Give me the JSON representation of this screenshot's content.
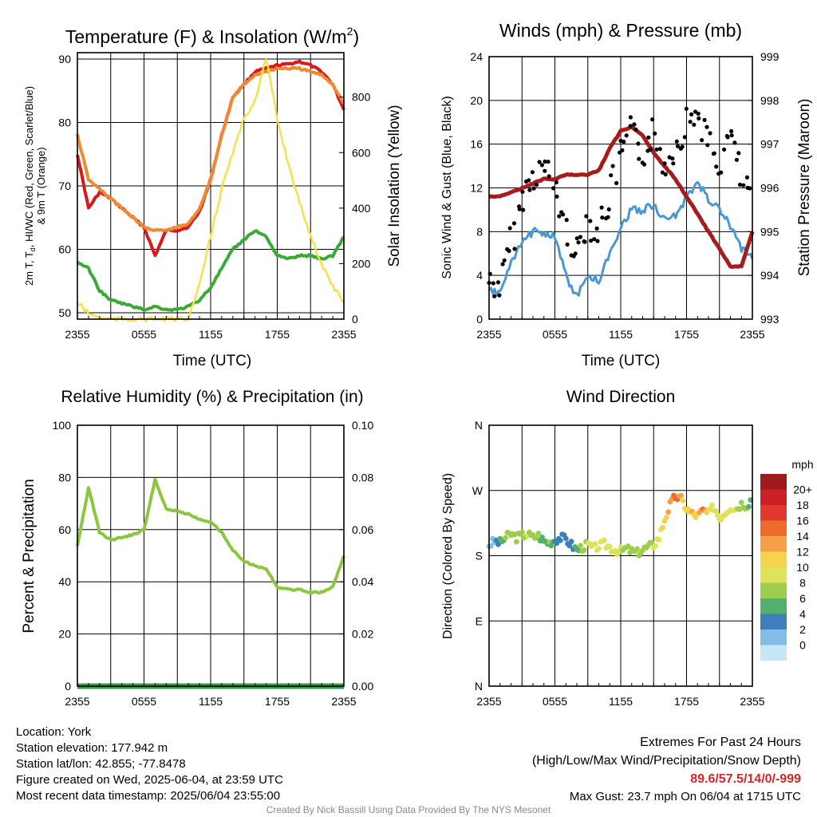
{
  "colors": {
    "red": "#d7191c",
    "orange": "#f08a32",
    "green": "#3aaa35",
    "yellow": "#f7e04a",
    "blue": "#4a98d3",
    "black": "#000000",
    "maroon": "#a51c1c",
    "rh": "#8cc63f",
    "precip": "#2f9e44",
    "highlight": "#d62728",
    "credit": "#888888"
  },
  "time_ticks": [
    "2355",
    "0555",
    "1155",
    "1755",
    "2355"
  ],
  "chart_data": [
    {
      "type": "line",
      "title": "Temperature (F) & Insolation (W/m",
      "title_sup": "2",
      "title_end": ")",
      "xlabel": "Time (UTC)",
      "ylabel": "2m T, T",
      "ylabel_sub": "d",
      "ylabel_rest": ", HI/WC (Red, Green, Scarlet/Blue)",
      "ylabel2": "& 9m T (Orange)",
      "y2label": "Solar Insolation (Yellow)",
      "ylim": [
        49,
        91
      ],
      "y2lim": [
        0,
        960
      ],
      "yticks": [
        50,
        60,
        70,
        80,
        90
      ],
      "y2ticks": [
        0,
        200,
        400,
        600,
        800
      ],
      "x": [
        0,
        1,
        2,
        3,
        4,
        5,
        6,
        7,
        8,
        9,
        10,
        11,
        12,
        13,
        14,
        15,
        16,
        17,
        18,
        19,
        20,
        21,
        22,
        23,
        24
      ],
      "series": [
        {
          "color_key": "red",
          "axis": "left",
          "values": [
            75,
            66.5,
            69,
            68,
            66.5,
            65,
            63.5,
            59,
            63,
            63,
            63.5,
            66,
            71,
            78,
            84,
            86,
            88,
            88.5,
            89,
            89.2,
            89.6,
            89,
            88,
            86,
            82
          ]
        },
        {
          "color_key": "orange",
          "axis": "left",
          "values": [
            78,
            71,
            69.5,
            68,
            66.5,
            65,
            63.5,
            63,
            63,
            63.5,
            64,
            66.5,
            71,
            78,
            84,
            86,
            87.5,
            88,
            88.5,
            88.5,
            88.5,
            88,
            87.5,
            86,
            83
          ]
        },
        {
          "color_key": "green",
          "axis": "left",
          "values": [
            58,
            57,
            53.5,
            52,
            51.5,
            51,
            50.5,
            51,
            50.5,
            50.5,
            51,
            52,
            54,
            57,
            60,
            61.5,
            63,
            62,
            59,
            58.5,
            59,
            59,
            58.5,
            59,
            62
          ]
        },
        {
          "color_key": "yellow",
          "axis": "right",
          "values": [
            60,
            20,
            5,
            0,
            0,
            0,
            0,
            0,
            0,
            0,
            5,
            120,
            300,
            470,
            600,
            720,
            790,
            940,
            720,
            560,
            420,
            300,
            200,
            120,
            60
          ]
        }
      ]
    },
    {
      "type": "line",
      "title": "Winds (mph) & Pressure (mb)",
      "xlabel": "Time (UTC)",
      "ylabel": "Sonic Wind & Gust (Blue, Black)",
      "y2label": "Station Pressure (Maroon)",
      "ylim": [
        0,
        24
      ],
      "y2lim": [
        993,
        999
      ],
      "yticks": [
        0,
        4,
        8,
        12,
        16,
        20,
        24
      ],
      "y2ticks": [
        993,
        994,
        995,
        996,
        997,
        998,
        999
      ],
      "x": [
        0,
        1,
        2,
        3,
        4,
        5,
        6,
        7,
        8,
        9,
        10,
        11,
        12,
        13,
        14,
        15,
        16,
        17,
        18,
        19,
        20,
        21,
        22,
        23,
        24
      ],
      "series": [
        {
          "color_key": "blue",
          "axis": "left",
          "values": [
            2.5,
            2.5,
            5,
            7,
            8,
            8,
            7.5,
            4,
            2,
            4,
            3.5,
            6,
            8.5,
            10,
            10,
            10.5,
            9,
            9.5,
            11,
            12.5,
            11,
            10,
            8.5,
            6.5,
            5.5
          ]
        },
        {
          "color_key": "maroon",
          "axis": "right",
          "values": [
            995.8,
            995.8,
            995.9,
            996,
            996.1,
            996.2,
            996.2,
            996.3,
            996.3,
            996.3,
            996.4,
            996.9,
            997.3,
            997.4,
            997.2,
            996.8,
            996.5,
            996.2,
            995.8,
            995.4,
            995,
            994.6,
            994.2,
            994.2,
            995
          ]
        },
        {
          "color_key": "black",
          "axis": "left",
          "kind": "scatter",
          "values": [
            3.5,
            3,
            7,
            11,
            13,
            14,
            12,
            8,
            6,
            9,
            8,
            11,
            15,
            17,
            15,
            17,
            14,
            16,
            18,
            19,
            16,
            14,
            17,
            13,
            10
          ]
        }
      ]
    },
    {
      "type": "line",
      "title": "Relative Humidity (%) & Precipitation (in)",
      "ylabel": "Percent & Precipitation",
      "ylim": [
        0,
        100
      ],
      "y2lim": [
        0,
        0.1
      ],
      "yticks": [
        0,
        20,
        40,
        60,
        80,
        100
      ],
      "y2ticks": [
        "0.00",
        "0.02",
        "0.04",
        "0.06",
        "0.08",
        "0.10"
      ],
      "x": [
        0,
        1,
        2,
        3,
        4,
        5,
        6,
        7,
        8,
        9,
        10,
        11,
        12,
        13,
        14,
        15,
        16,
        17,
        18,
        19,
        20,
        21,
        22,
        23,
        24
      ],
      "series": [
        {
          "color_key": "rh",
          "axis": "left",
          "values": [
            54,
            76,
            59,
            56,
            57,
            58,
            60,
            79,
            68,
            67,
            66,
            64,
            63,
            59,
            52,
            48,
            46,
            45,
            38,
            37,
            37,
            36,
            36,
            38,
            50
          ]
        },
        {
          "color_key": "precip",
          "axis": "right",
          "values": [
            0,
            0,
            0,
            0,
            0,
            0,
            0,
            0,
            0,
            0,
            0,
            0,
            0,
            0,
            0,
            0,
            0,
            0,
            0,
            0,
            0,
            0,
            0,
            0,
            0
          ]
        }
      ]
    },
    {
      "type": "scatter",
      "title": "Wind Direction",
      "ylabel": "Direction (Colored By Speed)",
      "ylim": [
        0,
        360
      ],
      "yticks": [
        "N",
        "E",
        "S",
        "W",
        "N"
      ],
      "legend_title": "mph",
      "legend_labels": [
        "20+",
        "18",
        "16",
        "14",
        "12",
        "10",
        "8",
        "6",
        "4",
        "2",
        "0"
      ],
      "legend_colors": [
        "#9e1a1d",
        "#cb2027",
        "#e0382d",
        "#ef6b2b",
        "#f5a046",
        "#f6d24d",
        "#dfe35a",
        "#9ccd4d",
        "#52b06b",
        "#3d7fb8",
        "#82bde8",
        "#c4e6f7"
      ],
      "x": [
        0,
        0.5,
        1,
        1.5,
        2,
        2.5,
        3,
        3.5,
        4,
        4.5,
        5,
        5.5,
        6,
        6.5,
        7,
        7.5,
        8,
        8.5,
        9,
        9.5,
        10,
        10.5,
        11,
        11.5,
        12,
        12.5,
        13,
        13.5,
        14,
        14.5,
        15,
        15.5,
        16,
        16.5,
        17,
        17.5,
        18,
        18.5,
        19,
        19.5,
        20,
        20.5,
        21,
        21.5,
        22,
        22.5,
        23,
        23.5,
        24
      ],
      "direction": [
        195,
        200,
        198,
        205,
        210,
        205,
        208,
        210,
        205,
        208,
        200,
        198,
        202,
        205,
        203,
        195,
        188,
        192,
        195,
        190,
        193,
        196,
        192,
        188,
        186,
        190,
        186,
        184,
        188,
        192,
        195,
        205,
        230,
        250,
        262,
        258,
        245,
        238,
        235,
        242,
        238,
        248,
        232,
        240,
        248,
        245,
        252,
        250,
        260
      ],
      "speed": [
        2,
        2,
        5,
        7,
        8,
        7,
        8,
        9,
        8,
        7,
        6,
        7,
        4,
        3,
        3,
        4,
        6,
        8,
        9,
        9,
        10,
        10,
        9,
        10,
        9,
        8,
        8,
        8,
        7,
        8,
        9,
        10,
        12,
        14,
        16,
        13,
        11,
        13,
        12,
        15,
        11,
        10,
        10,
        11,
        10,
        9,
        8,
        7,
        5
      ]
    }
  ],
  "info": {
    "location": "Location: York",
    "elevation": "Station elevation: 177.942 m",
    "latlon": "Station lat/lon: 42.855; -77.8478",
    "created": "Figure created on Wed, 2025-06-04, at 23:59 UTC",
    "recent": "Most recent data timestamp: 2025/06/04 23:55:00"
  },
  "extremes": {
    "title": "Extremes For Past 24 Hours",
    "subtitle": "(High/Low/Max Wind/Precipitation/Snow Depth)",
    "values": "89.6/57.5/14/0/-999",
    "gust": "Max Gust: 23.7 mph On 06/04 at 1715 UTC"
  },
  "credit": "Created By Nick Bassill Using Data Provided By The NYS Mesonet"
}
